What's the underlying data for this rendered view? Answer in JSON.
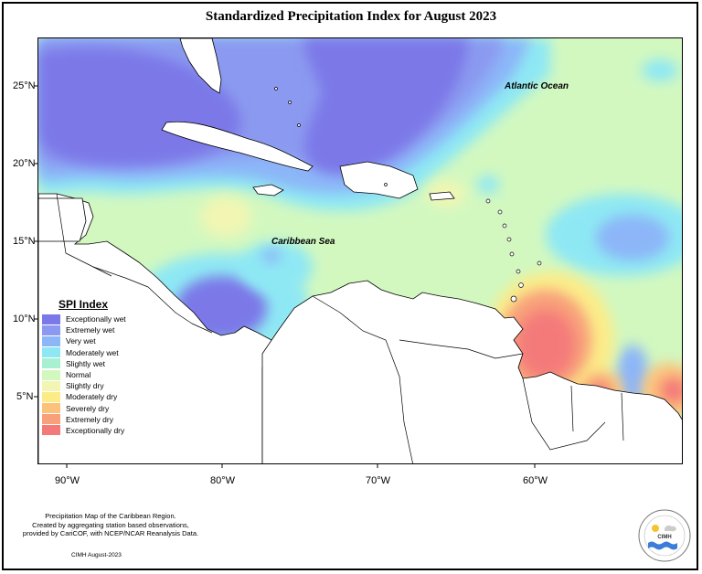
{
  "title": "Standardized Precipitation Index for August 2023",
  "axes": {
    "x_ticks": [
      "90°W",
      "80°W",
      "70°W",
      "60°W"
    ],
    "y_ticks": [
      "25°N",
      "20°N",
      "15°N",
      "10°N",
      "5°N"
    ]
  },
  "map_labels": {
    "atlantic": "Atlantic Ocean",
    "caribbean": "Caribbean Sea"
  },
  "legend": {
    "title": "SPI Index",
    "items": [
      {
        "label": "Exceptionally wet",
        "color": "#7b78e8"
      },
      {
        "label": "Extremely wet",
        "color": "#8b9af0"
      },
      {
        "label": "Very wet",
        "color": "#8cb6f8"
      },
      {
        "label": "Moderately wet",
        "color": "#8ee8f4"
      },
      {
        "label": "Slightly wet",
        "color": "#a8f0d2"
      },
      {
        "label": "Normal",
        "color": "#d2f8c0"
      },
      {
        "label": "Slightly dry",
        "color": "#f2f6b2"
      },
      {
        "label": "Moderately dry",
        "color": "#fcec88"
      },
      {
        "label": "Severely dry",
        "color": "#fcc27a"
      },
      {
        "label": "Extremely dry",
        "color": "#f8a07a"
      },
      {
        "label": "Exceptionally dry",
        "color": "#f47a7a"
      }
    ]
  },
  "footer": {
    "line1": "Precipitation Map of the Caribbean Region.",
    "line2": "Created by aggregating station based observations,",
    "line3": "provided by CariCOF, with NCEP/NCAR Reanalysis Data.",
    "date": "CIMH August-2023"
  },
  "logo": {
    "text": "CIMH"
  }
}
